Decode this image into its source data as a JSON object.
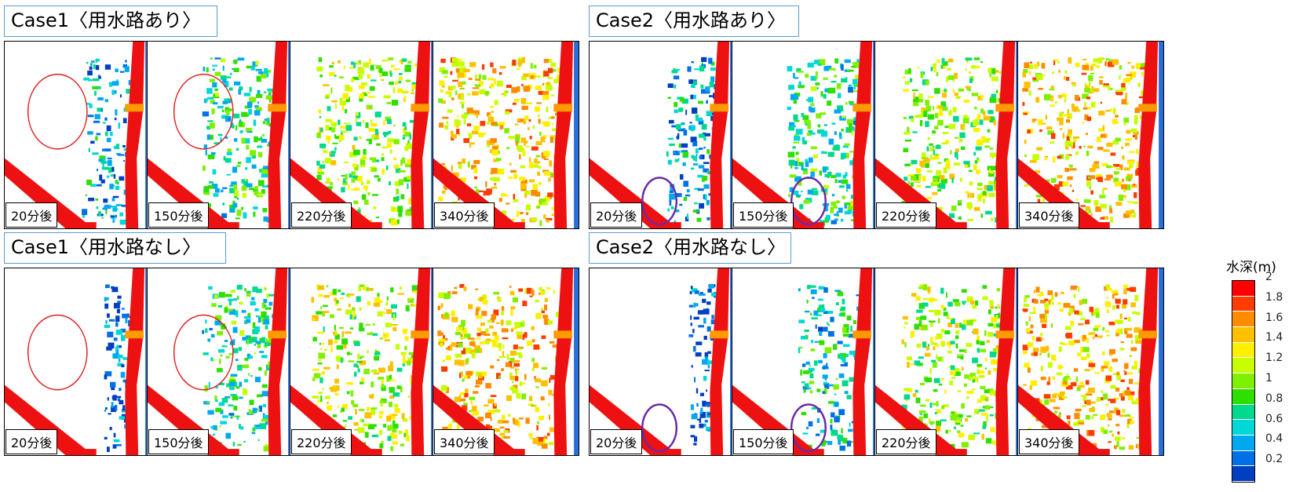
{
  "rows": [
    {
      "cases": [
        {
          "title": "Case1〈用水路あり〉",
          "times": [
            "20分後",
            "150分後",
            "220分後",
            "340分後"
          ],
          "levels": [
            0.25,
            0.45,
            0.7,
            0.95
          ],
          "highlight": {
            "panel": 0,
            "kind": "red"
          },
          "highlight2": {
            "panel": 1,
            "kind": "red"
          }
        },
        {
          "title": "Case2〈用水路あり〉",
          "times": [
            "20分後",
            "150分後",
            "220分後",
            "340分後"
          ],
          "levels": [
            0.25,
            0.45,
            0.7,
            0.95
          ],
          "highlight": {
            "panel": 0,
            "kind": "purple"
          },
          "highlight2": {
            "panel": 1,
            "kind": "purple"
          }
        }
      ]
    },
    {
      "cases": [
        {
          "title": "Case1〈用水路なし〉",
          "times": [
            "20分後",
            "150分後",
            "220分後",
            "340分後"
          ],
          "levels": [
            0.05,
            0.45,
            0.75,
            0.95
          ],
          "highlight": {
            "panel": 0,
            "kind": "red"
          },
          "highlight2": {
            "panel": 1,
            "kind": "red"
          }
        },
        {
          "title": "Case2〈用水路なし〉",
          "times": [
            "20分後",
            "150分後",
            "220分後",
            "340分後"
          ],
          "levels": [
            0.05,
            0.35,
            0.7,
            0.95
          ],
          "highlight": {
            "panel": 0,
            "kind": "purple"
          },
          "highlight2": {
            "panel": 1,
            "kind": "purple"
          }
        }
      ]
    }
  ],
  "legend": {
    "title": "水深(m)",
    "ticks": [
      "2",
      "1.8",
      "1.6",
      "1.4",
      "1.2",
      "1",
      "0.8",
      "0.6",
      "0.4",
      "0.2"
    ],
    "colors": [
      "#ff0000",
      "#ff3c00",
      "#ff8c00",
      "#ffc000",
      "#fff000",
      "#c8ff00",
      "#7ff000",
      "#2ee000",
      "#00d98e",
      "#00d7d7",
      "#00a8f0",
      "#0070e6",
      "#0040c0"
    ]
  },
  "colors": {
    "river": "#ee1111",
    "circle_red": "#dd2222",
    "circle_purple": "#6a2aa8",
    "frame": "#000000"
  }
}
